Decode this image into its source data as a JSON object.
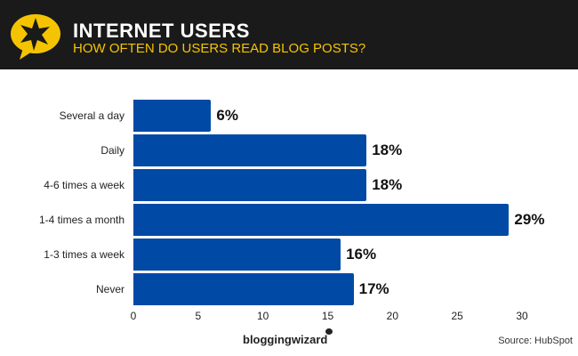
{
  "header": {
    "title": "INTERNET USERS",
    "subtitle": "HOW OFTEN DO USERS READ BLOG POSTS?"
  },
  "footer": {
    "brand": "bloggingwizard",
    "source": "Source: HubSpot"
  },
  "chart_data": {
    "type": "bar",
    "orientation": "horizontal",
    "title": "INTERNET USERS",
    "subtitle": "HOW OFTEN DO USERS READ BLOG POSTS?",
    "categories": [
      "Several a day",
      "Daily",
      "4-6 times a week",
      "1-4 times a month",
      "1-3 times a week",
      "Never"
    ],
    "values": [
      6,
      18,
      18,
      29,
      16,
      17
    ],
    "labels": [
      "6%",
      "18%",
      "18%",
      "29%",
      "16%",
      "17%"
    ],
    "xticks": [
      "0",
      "5",
      "10",
      "15",
      "20",
      "25",
      "30"
    ],
    "xlim": [
      0,
      30
    ],
    "grid": false,
    "bar_color": "#004aa5",
    "xlabel": "",
    "ylabel": ""
  }
}
